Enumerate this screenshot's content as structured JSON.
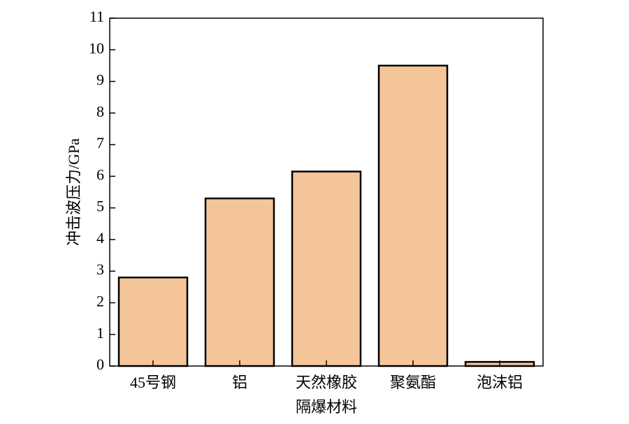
{
  "chart_data": {
    "type": "bar",
    "x_label": "隔爆材料",
    "y_label": "冲击波压力/GPa",
    "categories": [
      "45号钢",
      "铝",
      "天然橡胶",
      "聚氨酯",
      "泡沫铝"
    ],
    "values": [
      2.8,
      5.3,
      6.15,
      9.5,
      0.13
    ],
    "color": "#f5c59a",
    "ylim": [
      0,
      11
    ],
    "yticks": [
      0,
      1,
      2,
      3,
      4,
      5,
      6,
      7,
      8,
      9,
      10,
      11
    ],
    "grid": false
  }
}
